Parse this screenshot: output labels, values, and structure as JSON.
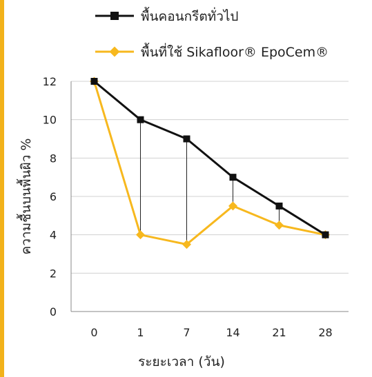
{
  "colors": {
    "accent": "#f2b21a",
    "series_general": "#111111",
    "series_epocem": "#f7b81e",
    "grid": "#d0d0d0",
    "axis": "#888888",
    "drop_line": "#222222"
  },
  "chart_data": {
    "type": "line",
    "categories": [
      "0",
      "1",
      "7",
      "14",
      "21",
      "28"
    ],
    "series": [
      {
        "name": "พื้นคอนกรีตทั่วไป",
        "marker": "square",
        "values": [
          12,
          10,
          9,
          7,
          5.5,
          4
        ]
      },
      {
        "name": "พื้นที่ใช้ Sikafloor® EpoCem®",
        "marker": "diamond",
        "values": [
          12,
          4,
          3.5,
          5.5,
          4.5,
          4
        ]
      }
    ],
    "ylim": [
      0,
      12
    ],
    "yticks": [
      "0",
      "2",
      "4",
      "6",
      "8",
      "10",
      "12"
    ],
    "xlabel": "ระยะเวลา (วัน)",
    "ylabel": "ความชื้นบนพื้นผิว %",
    "grid": "horizontal",
    "drop_lines": true,
    "legend_position": "top"
  }
}
